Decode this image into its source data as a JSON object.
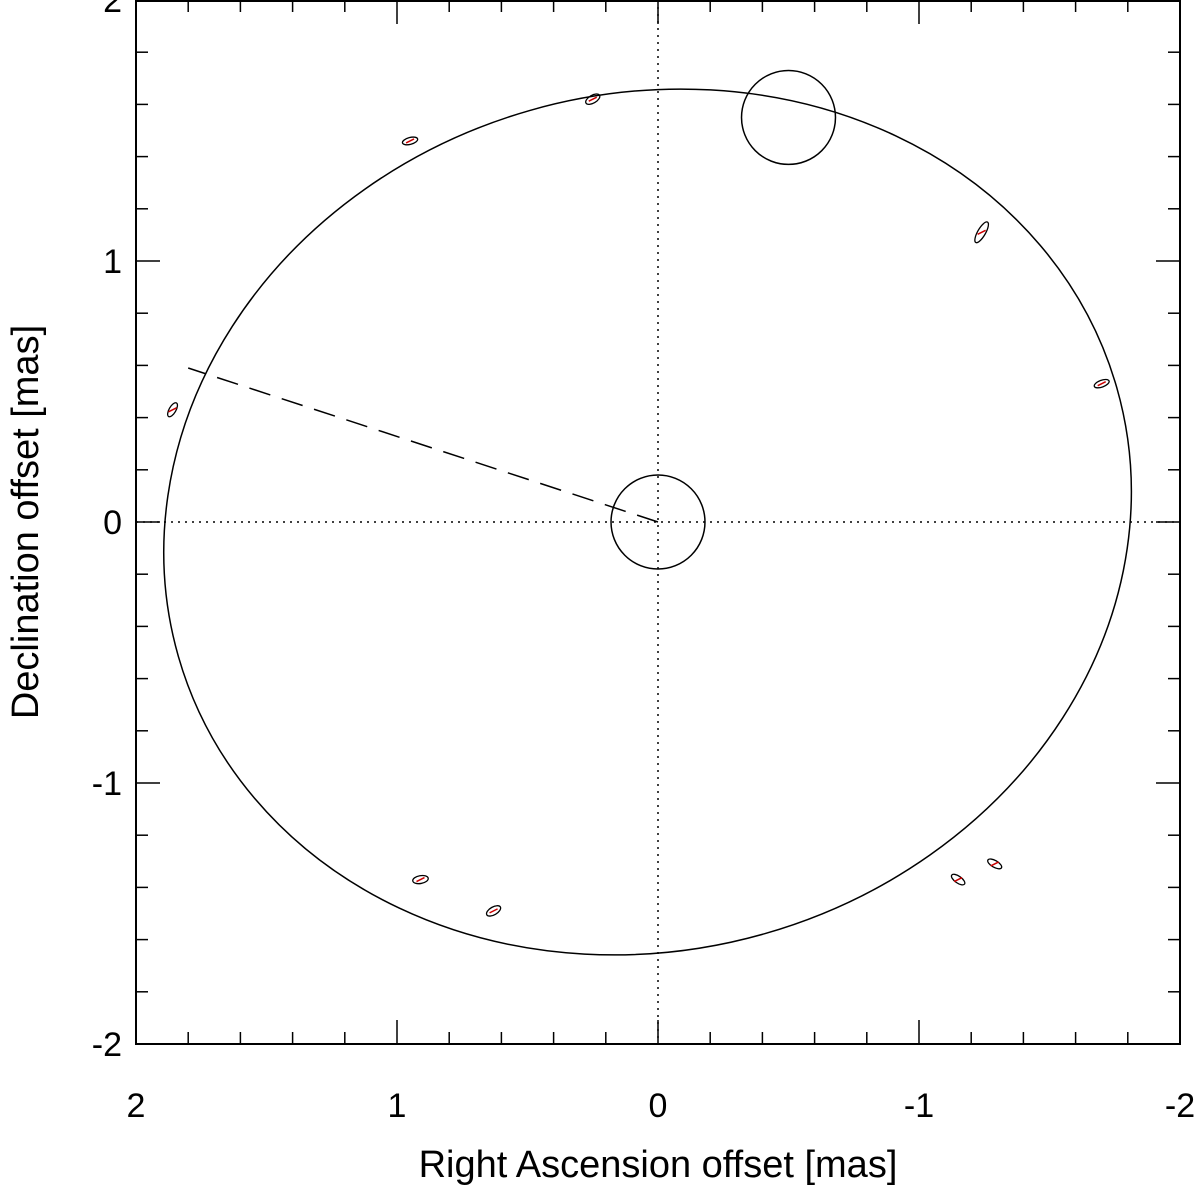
{
  "chart_data": {
    "type": "scatter",
    "title": "",
    "xlabel": "Right Ascension offset [mas]",
    "ylabel": "Declination offset [mas]",
    "xlim": [
      2,
      -2
    ],
    "ylim": [
      -2,
      2
    ],
    "x_ticks": [
      "2",
      "1",
      "0",
      "-1",
      "-2"
    ],
    "y_ticks": [
      "2",
      "1",
      "0",
      "-1",
      "-2"
    ],
    "grid": false,
    "zero_lines": "dotted",
    "orbit": {
      "center": [
        0.04,
        0.0
      ],
      "semi_axes": [
        1.87,
        1.64
      ],
      "rotation_deg": -16,
      "color": "#000000"
    },
    "periastron_line": {
      "from": [
        0.0,
        0.0
      ],
      "to": [
        1.8,
        0.59
      ],
      "style": "dashed"
    },
    "primary_star": {
      "x": 0.0,
      "y": 0.0,
      "radius": 0.18
    },
    "secondary_circle": {
      "x": -0.5,
      "y": 1.55,
      "radius": 0.18
    },
    "observations": [
      {
        "x": 0.25,
        "y": 1.62,
        "err_a": 0.03,
        "err_b": 0.015,
        "angle_deg": 30
      },
      {
        "x": 0.95,
        "y": 1.46,
        "err_a": 0.03,
        "err_b": 0.013,
        "angle_deg": 15
      },
      {
        "x": -1.24,
        "y": 1.11,
        "err_a": 0.045,
        "err_b": 0.015,
        "angle_deg": 60
      },
      {
        "x": -1.7,
        "y": 0.53,
        "err_a": 0.03,
        "err_b": 0.013,
        "angle_deg": 20
      },
      {
        "x": 1.86,
        "y": 0.43,
        "err_a": 0.03,
        "err_b": 0.013,
        "angle_deg": 60
      },
      {
        "x": 0.91,
        "y": -1.37,
        "err_a": 0.03,
        "err_b": 0.015,
        "angle_deg": 10
      },
      {
        "x": 0.63,
        "y": -1.49,
        "err_a": 0.03,
        "err_b": 0.015,
        "angle_deg": 30
      },
      {
        "x": -1.15,
        "y": -1.37,
        "err_a": 0.03,
        "err_b": 0.013,
        "angle_deg": -35
      },
      {
        "x": -1.29,
        "y": -1.31,
        "err_a": 0.03,
        "err_b": 0.013,
        "angle_deg": -30
      }
    ],
    "model_color": "#cc0000"
  }
}
